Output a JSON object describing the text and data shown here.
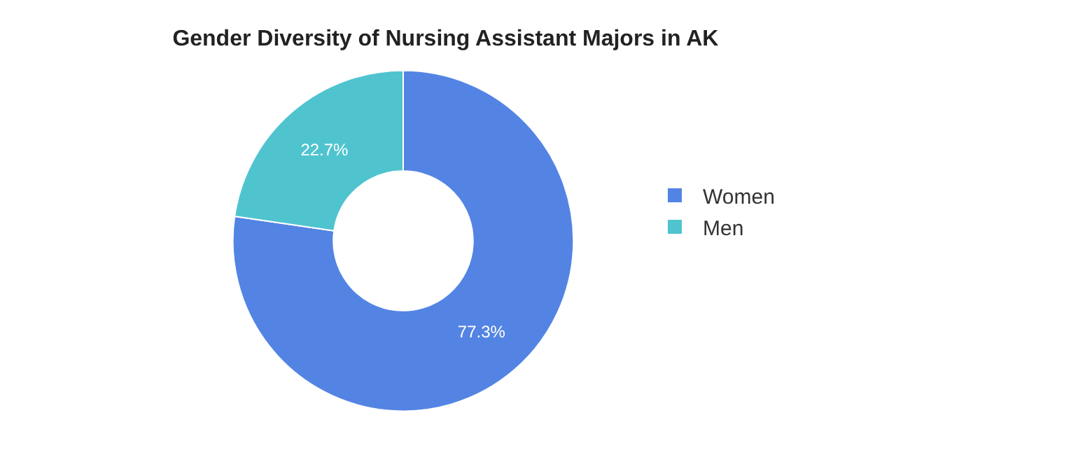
{
  "chart_data": {
    "type": "donut",
    "title": "Gender Diversity of Nursing Assistant Majors in AK",
    "categories": [
      "Women",
      "Men"
    ],
    "values": [
      77.3,
      22.7
    ],
    "colors": [
      "#5384e4",
      "#4fc4cf"
    ],
    "value_labels": [
      "77.3%",
      "22.7%"
    ],
    "legend": "right"
  }
}
